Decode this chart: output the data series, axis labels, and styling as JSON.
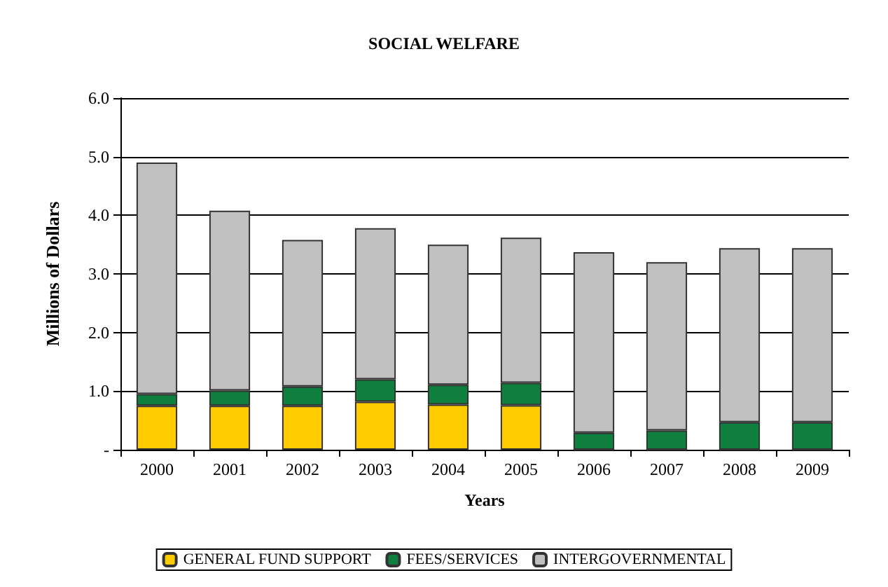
{
  "chart_data": {
    "type": "bar",
    "title": "SOCIAL WELFARE",
    "xlabel": "Years",
    "ylabel": "Millions of Dollars",
    "stacked": true,
    "categories": [
      "2000",
      "2001",
      "2002",
      "2003",
      "2004",
      "2005",
      "2006",
      "2007",
      "2008",
      "2009"
    ],
    "series": [
      {
        "name": "GENERAL FUND SUPPORT",
        "color": "#ffcc00",
        "values": [
          0.75,
          0.75,
          0.75,
          0.82,
          0.77,
          0.76,
          0,
          0,
          0,
          0
        ]
      },
      {
        "name": "FEES/SERVICES",
        "color": "#0e7f3e",
        "values": [
          0.2,
          0.26,
          0.33,
          0.38,
          0.34,
          0.38,
          0.29,
          0.33,
          0.47,
          0.47
        ]
      },
      {
        "name": "INTERGOVERNMENTAL",
        "color": "#c0c0c0",
        "values": [
          3.95,
          3.07,
          2.5,
          2.58,
          2.39,
          2.48,
          3.08,
          2.87,
          2.97,
          2.97
        ]
      }
    ],
    "ylim": [
      0,
      6
    ],
    "yticks": [
      {
        "value": 0,
        "label": "-"
      },
      {
        "value": 1,
        "label": "1.0"
      },
      {
        "value": 2,
        "label": "2.0"
      },
      {
        "value": 3,
        "label": "3.0"
      },
      {
        "value": 4,
        "label": "4.0"
      },
      {
        "value": 5,
        "label": "5.0"
      },
      {
        "value": 6,
        "label": "6.0"
      }
    ],
    "grid": "y",
    "legend": "bottom"
  }
}
